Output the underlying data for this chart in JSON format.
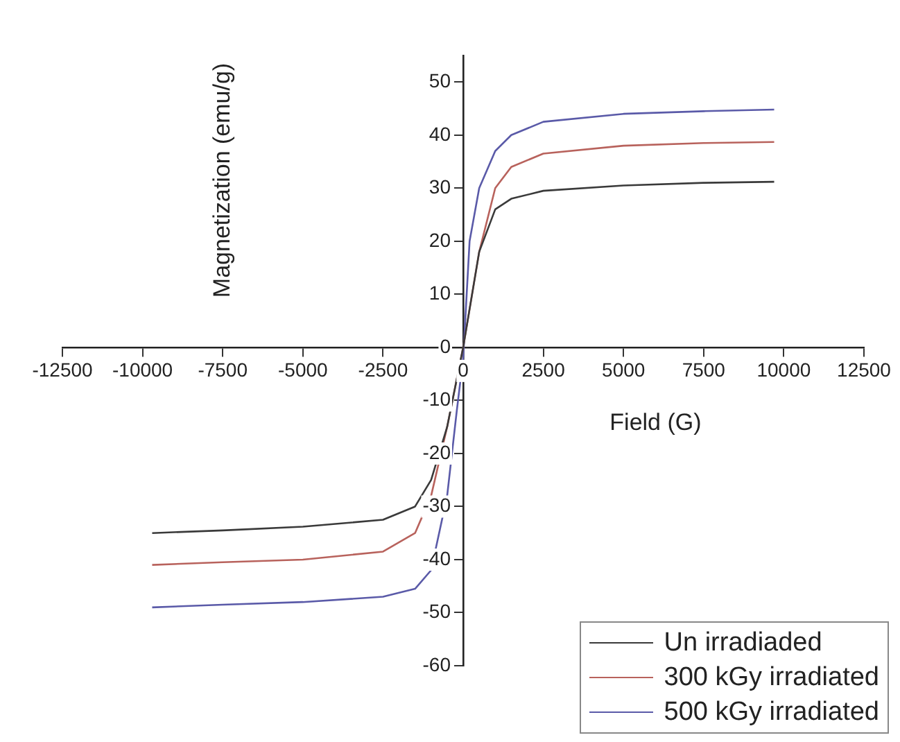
{
  "chart_data": {
    "type": "line",
    "xlabel": "Field (G)",
    "ylabel": "Magnetization (emu/g)",
    "xlim": [
      -12500,
      12500
    ],
    "xticks": [
      -12500,
      -10000,
      -7500,
      -5000,
      -2500,
      0,
      2500,
      5000,
      7500,
      10000,
      12500
    ],
    "ylim": [
      -60,
      55
    ],
    "yticks": [
      -60,
      -50,
      -40,
      -30,
      -20,
      -10,
      0,
      10,
      20,
      30,
      40,
      50
    ],
    "grid": false,
    "legend": "bottom right",
    "marker": "none",
    "line_style": "solid",
    "series": [
      {
        "name": "Un irradiaded",
        "color": "#3a3a3a",
        "x": [
          -9700,
          -7500,
          -5000,
          -2500,
          -1500,
          -1000,
          -500,
          0,
          500,
          1000,
          1500,
          2500,
          5000,
          7500,
          9700
        ],
        "values": [
          -35,
          -34.5,
          -33.8,
          -32.5,
          -30,
          -25,
          -15,
          0,
          18,
          26,
          28,
          29.5,
          30.5,
          31,
          31.2
        ]
      },
      {
        "name": "300 kGy irradiated",
        "color": "#b8625c",
        "x": [
          -9700,
          -7500,
          -5000,
          -2500,
          -1500,
          -1000,
          -500,
          0,
          500,
          1000,
          1500,
          2500,
          5000,
          7500,
          9700
        ],
        "values": [
          -41,
          -40.5,
          -40,
          -38.5,
          -35,
          -28,
          -15,
          0,
          18,
          30,
          34,
          36.5,
          38,
          38.5,
          38.7
        ]
      },
      {
        "name": "500 kGy irradiated",
        "color": "#5a5aa8",
        "x": [
          -9700,
          -7500,
          -5000,
          -2500,
          -1500,
          -1000,
          -500,
          -200,
          0,
          200,
          500,
          1000,
          1500,
          2500,
          5000,
          7500,
          9700
        ],
        "values": [
          -49,
          -48.5,
          -48,
          -47,
          -45.5,
          -42,
          -28,
          -12,
          -2,
          20,
          30,
          37,
          40,
          42.5,
          44,
          44.5,
          44.8
        ]
      }
    ]
  }
}
